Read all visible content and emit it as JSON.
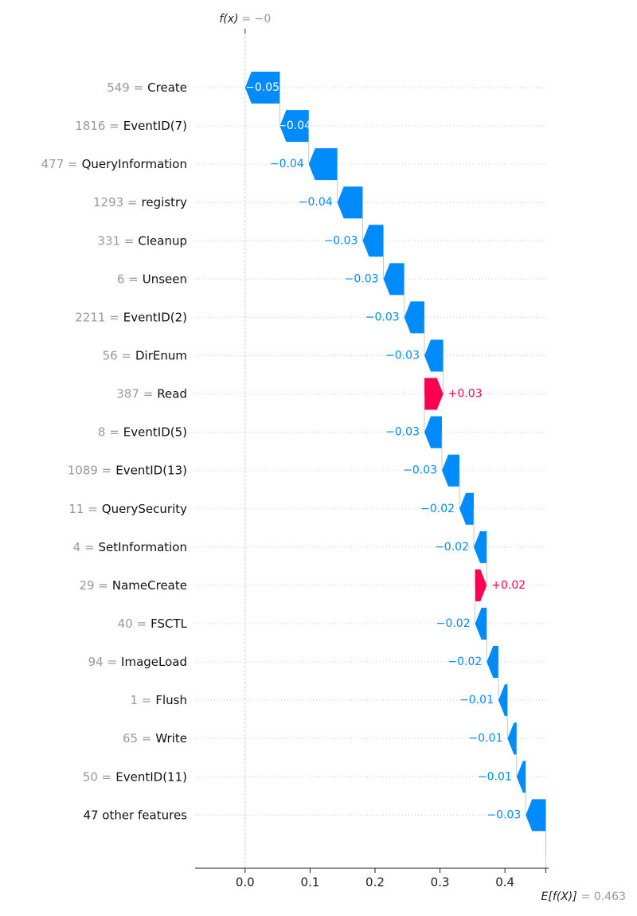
{
  "chart_data": {
    "type": "waterfall",
    "fx_label": "f(x)",
    "fx_value": 0,
    "fx_value_label": "= −0",
    "expected_label": "E[f(X)]",
    "expected_value": 0.463,
    "expected_value_label": "= 0.463",
    "categories": [
      "Create",
      "EventID(7)",
      "QueryInformation",
      "registry",
      "Cleanup",
      "Unseen",
      "EventID(2)",
      "DirEnum",
      "Read",
      "EventID(5)",
      "EventID(13)",
      "QuerySecurity",
      "SetInformation",
      "NameCreate",
      "FSCTL",
      "ImageLoad",
      "Flush",
      "Write",
      "EventID(11)",
      "47 other features"
    ],
    "feature_values": [
      "549 =",
      "1816 =",
      "477 =",
      "1293 =",
      "331 =",
      "6 =",
      "2211 =",
      "56 =",
      "387 =",
      "8 =",
      "1089 =",
      "11 =",
      "4 =",
      "29 =",
      "40 =",
      "94 =",
      "1 =",
      "65 =",
      "50 =",
      null
    ],
    "values": [
      -0.0535,
      -0.0445,
      -0.044,
      -0.039,
      -0.032,
      -0.032,
      -0.031,
      -0.029,
      0.029,
      -0.027,
      -0.027,
      -0.022,
      -0.02,
      0.018,
      -0.018,
      -0.018,
      -0.014,
      -0.014,
      -0.014,
      -0.031
    ],
    "value_labels": [
      "−0.05",
      "−0.04",
      "−0.04",
      "−0.04",
      "−0.03",
      "−0.03",
      "−0.03",
      "−0.03",
      "+0.03",
      "−0.03",
      "−0.03",
      "−0.02",
      "−0.02",
      "+0.02",
      "−0.02",
      "−0.02",
      "−0.01",
      "−0.01",
      "−0.01",
      "−0.03"
    ],
    "colors": {
      "positive": "#ff0051",
      "negative": "#008bfb"
    },
    "xlim": [
      -0.077,
      0.466
    ],
    "xticks": [
      {
        "value": 0,
        "label": "0.0"
      },
      0.1,
      0.2,
      0.3,
      0.4
    ]
  }
}
